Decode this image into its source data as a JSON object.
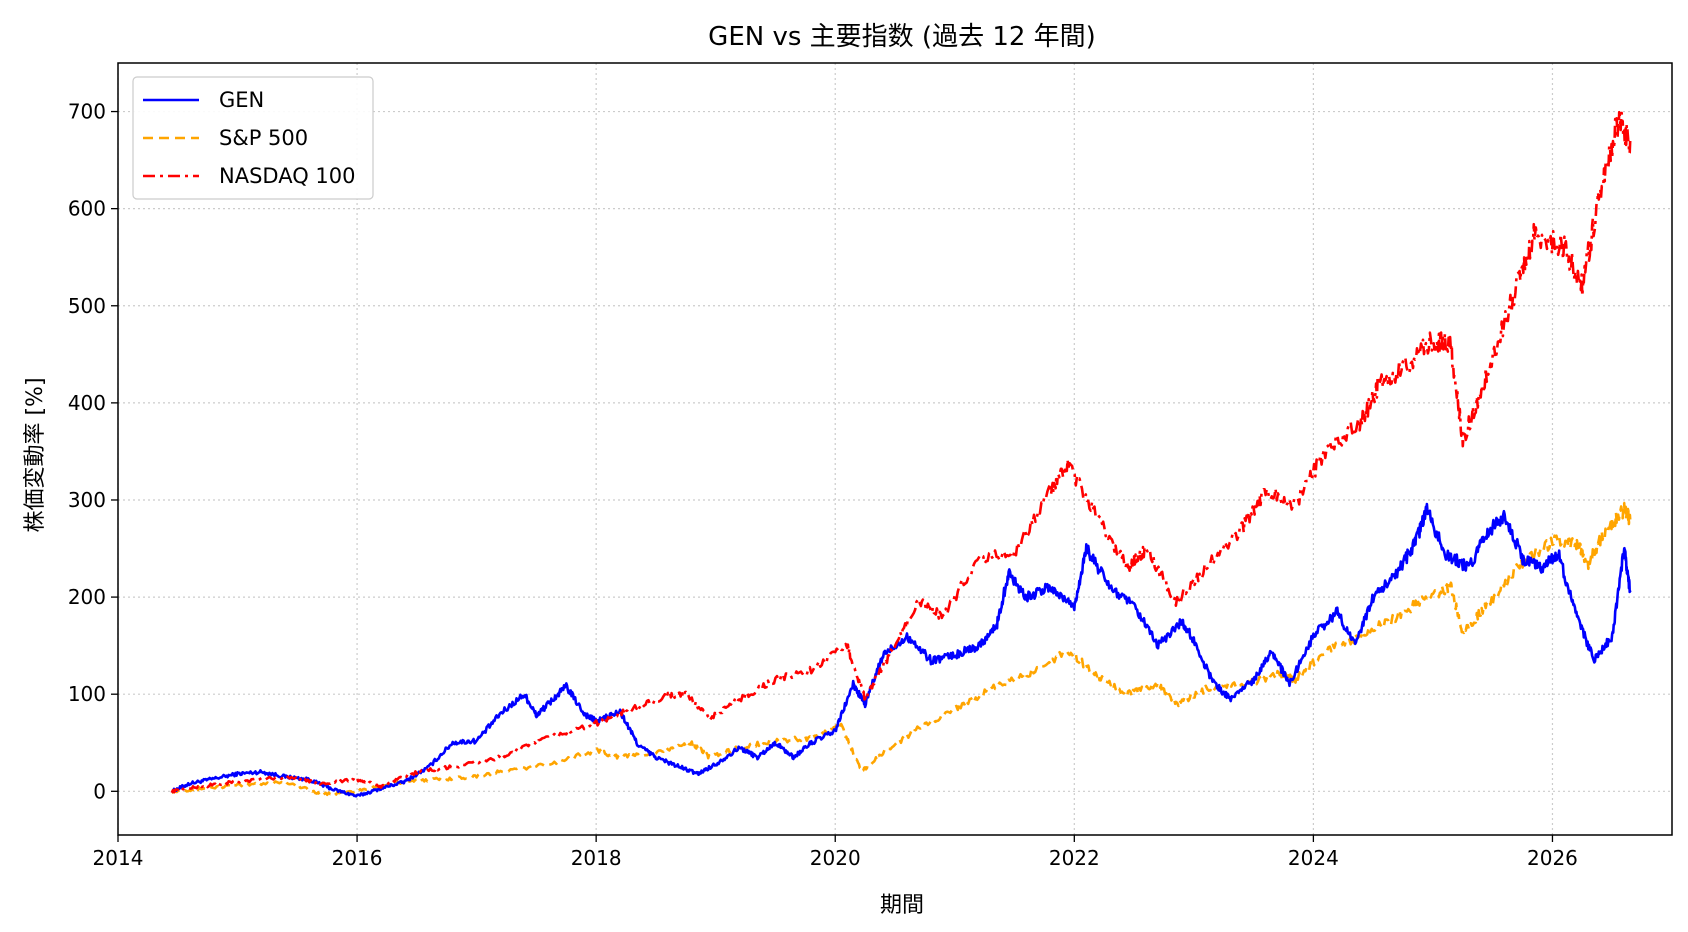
{
  "chart_data": {
    "type": "line",
    "title": "GEN vs 主要指数 (過去 12 年間)",
    "xlabel": "期間",
    "ylabel": "株価変動率 [%]",
    "xlim": [
      2014.0,
      2027.0
    ],
    "ylim": [
      -45,
      750
    ],
    "x_ticks": [
      2014,
      2016,
      2018,
      2020,
      2022,
      2024,
      2026
    ],
    "x_tick_labels": [
      "2014",
      "2016",
      "2018",
      "2020",
      "2022",
      "2024",
      "2026"
    ],
    "y_ticks": [
      0,
      100,
      200,
      300,
      400,
      500,
      600,
      700
    ],
    "y_tick_labels": [
      "0",
      "100",
      "200",
      "300",
      "400",
      "500",
      "600",
      "700"
    ],
    "grid": true,
    "legend_position": "top-left",
    "series": [
      {
        "name": "GEN",
        "color": "#0000ff",
        "style": "solid",
        "points": [
          [
            2014.45,
            0
          ],
          [
            2014.6,
            8
          ],
          [
            2014.8,
            13
          ],
          [
            2015.0,
            18
          ],
          [
            2015.2,
            20
          ],
          [
            2015.4,
            15
          ],
          [
            2015.6,
            12
          ],
          [
            2015.8,
            2
          ],
          [
            2016.0,
            -5
          ],
          [
            2016.2,
            3
          ],
          [
            2016.4,
            10
          ],
          [
            2016.6,
            25
          ],
          [
            2016.8,
            50
          ],
          [
            2017.0,
            52
          ],
          [
            2017.2,
            80
          ],
          [
            2017.4,
            100
          ],
          [
            2017.5,
            78
          ],
          [
            2017.6,
            90
          ],
          [
            2017.75,
            108
          ],
          [
            2017.9,
            80
          ],
          [
            2018.0,
            72
          ],
          [
            2018.2,
            82
          ],
          [
            2018.35,
            48
          ],
          [
            2018.5,
            35
          ],
          [
            2018.7,
            25
          ],
          [
            2018.85,
            18
          ],
          [
            2019.0,
            28
          ],
          [
            2019.2,
            45
          ],
          [
            2019.35,
            35
          ],
          [
            2019.5,
            50
          ],
          [
            2019.65,
            35
          ],
          [
            2019.8,
            50
          ],
          [
            2020.0,
            62
          ],
          [
            2020.15,
            110
          ],
          [
            2020.25,
            90
          ],
          [
            2020.4,
            140
          ],
          [
            2020.6,
            160
          ],
          [
            2020.8,
            135
          ],
          [
            2021.0,
            140
          ],
          [
            2021.2,
            150
          ],
          [
            2021.35,
            170
          ],
          [
            2021.45,
            225
          ],
          [
            2021.6,
            200
          ],
          [
            2021.8,
            210
          ],
          [
            2022.0,
            190
          ],
          [
            2022.1,
            250
          ],
          [
            2022.3,
            210
          ],
          [
            2022.5,
            190
          ],
          [
            2022.7,
            150
          ],
          [
            2022.9,
            175
          ],
          [
            2023.0,
            155
          ],
          [
            2023.15,
            115
          ],
          [
            2023.3,
            95
          ],
          [
            2023.5,
            115
          ],
          [
            2023.65,
            145
          ],
          [
            2023.8,
            110
          ],
          [
            2024.0,
            160
          ],
          [
            2024.2,
            185
          ],
          [
            2024.35,
            150
          ],
          [
            2024.5,
            200
          ],
          [
            2024.7,
            225
          ],
          [
            2024.85,
            255
          ],
          [
            2024.95,
            290
          ],
          [
            2025.1,
            245
          ],
          [
            2025.3,
            230
          ],
          [
            2025.45,
            265
          ],
          [
            2025.6,
            285
          ],
          [
            2025.75,
            240
          ],
          [
            2025.9,
            230
          ],
          [
            2026.05,
            245
          ],
          [
            2026.2,
            180
          ],
          [
            2026.35,
            135
          ],
          [
            2026.5,
            160
          ],
          [
            2026.6,
            250
          ],
          [
            2026.65,
            205
          ]
        ]
      },
      {
        "name": "S&P 500",
        "color": "#ffa500",
        "style": "dashed",
        "points": [
          [
            2014.45,
            0
          ],
          [
            2014.7,
            3
          ],
          [
            2015.0,
            6
          ],
          [
            2015.4,
            10
          ],
          [
            2015.7,
            -3
          ],
          [
            2016.0,
            0
          ],
          [
            2016.3,
            8
          ],
          [
            2016.6,
            12
          ],
          [
            2016.9,
            14
          ],
          [
            2017.2,
            20
          ],
          [
            2017.6,
            28
          ],
          [
            2018.0,
            42
          ],
          [
            2018.2,
            35
          ],
          [
            2018.5,
            40
          ],
          [
            2018.8,
            50
          ],
          [
            2018.95,
            35
          ],
          [
            2019.2,
            45
          ],
          [
            2019.5,
            52
          ],
          [
            2019.8,
            55
          ],
          [
            2020.05,
            68
          ],
          [
            2020.22,
            20
          ],
          [
            2020.4,
            40
          ],
          [
            2020.7,
            65
          ],
          [
            2021.0,
            85
          ],
          [
            2021.3,
            105
          ],
          [
            2021.6,
            120
          ],
          [
            2021.95,
            145
          ],
          [
            2022.2,
            118
          ],
          [
            2022.45,
            100
          ],
          [
            2022.7,
            110
          ],
          [
            2022.85,
            90
          ],
          [
            2023.1,
            105
          ],
          [
            2023.4,
            110
          ],
          [
            2023.7,
            120
          ],
          [
            2023.85,
            115
          ],
          [
            2024.1,
            145
          ],
          [
            2024.4,
            160
          ],
          [
            2024.7,
            180
          ],
          [
            2024.95,
            200
          ],
          [
            2025.15,
            210
          ],
          [
            2025.25,
            165
          ],
          [
            2025.45,
            190
          ],
          [
            2025.7,
            230
          ],
          [
            2026.0,
            258
          ],
          [
            2026.2,
            255
          ],
          [
            2026.3,
            235
          ],
          [
            2026.45,
            270
          ],
          [
            2026.6,
            290
          ],
          [
            2026.65,
            280
          ]
        ]
      },
      {
        "name": "NASDAQ 100",
        "color": "#ff0000",
        "style": "dashdot",
        "points": [
          [
            2014.45,
            0
          ],
          [
            2014.7,
            5
          ],
          [
            2015.0,
            10
          ],
          [
            2015.4,
            15
          ],
          [
            2015.7,
            8
          ],
          [
            2016.0,
            12
          ],
          [
            2016.2,
            5
          ],
          [
            2016.5,
            20
          ],
          [
            2016.8,
            25
          ],
          [
            2017.2,
            35
          ],
          [
            2017.6,
            55
          ],
          [
            2018.0,
            70
          ],
          [
            2018.3,
            85
          ],
          [
            2018.6,
            98
          ],
          [
            2018.75,
            100
          ],
          [
            2018.95,
            75
          ],
          [
            2019.2,
            95
          ],
          [
            2019.5,
            115
          ],
          [
            2019.8,
            125
          ],
          [
            2020.1,
            150
          ],
          [
            2020.25,
            95
          ],
          [
            2020.45,
            140
          ],
          [
            2020.7,
            195
          ],
          [
            2020.9,
            180
          ],
          [
            2021.2,
            240
          ],
          [
            2021.5,
            245
          ],
          [
            2021.8,
            310
          ],
          [
            2021.95,
            335
          ],
          [
            2022.2,
            280
          ],
          [
            2022.45,
            230
          ],
          [
            2022.6,
            250
          ],
          [
            2022.85,
            195
          ],
          [
            2023.1,
            230
          ],
          [
            2023.4,
            270
          ],
          [
            2023.6,
            310
          ],
          [
            2023.85,
            295
          ],
          [
            2024.1,
            350
          ],
          [
            2024.4,
            380
          ],
          [
            2024.55,
            420
          ],
          [
            2024.8,
            440
          ],
          [
            2025.0,
            465
          ],
          [
            2025.15,
            460
          ],
          [
            2025.25,
            360
          ],
          [
            2025.45,
            430
          ],
          [
            2025.7,
            520
          ],
          [
            2025.85,
            575
          ],
          [
            2026.1,
            560
          ],
          [
            2026.25,
            520
          ],
          [
            2026.4,
            620
          ],
          [
            2026.55,
            690
          ],
          [
            2026.65,
            670
          ]
        ]
      }
    ]
  }
}
